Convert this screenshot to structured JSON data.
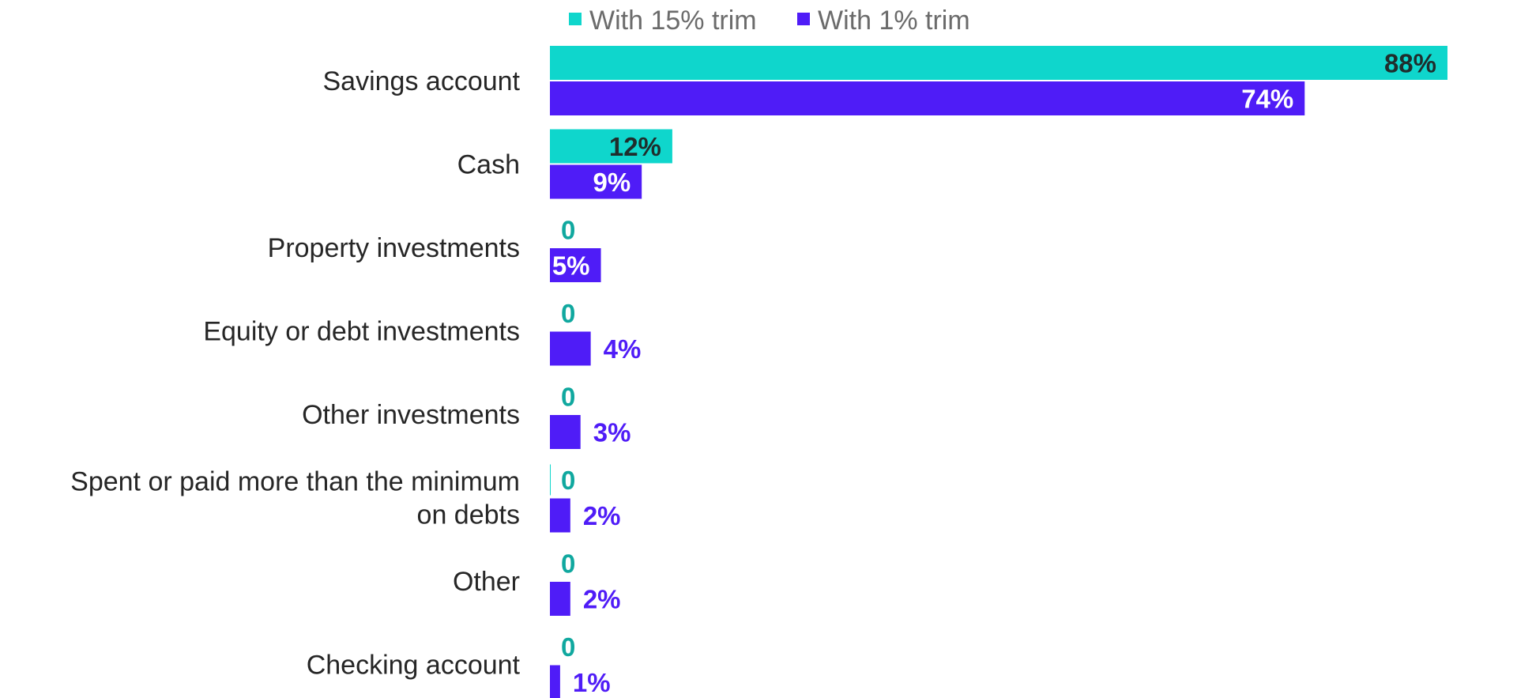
{
  "chart_data": {
    "type": "bar",
    "orientation": "horizontal",
    "categories": [
      [
        "Savings account"
      ],
      [
        "Cash"
      ],
      [
        "Property investments"
      ],
      [
        "Equity or debt investments"
      ],
      [
        "Other investments"
      ],
      [
        "Spent or paid more than the minimum",
        "on debts"
      ],
      [
        "Other"
      ],
      [
        "Checking account"
      ]
    ],
    "series": [
      {
        "name": "With 15% trim",
        "color": "#0fd6cc",
        "label_color_inside": "#1f2d2c",
        "label_color_outside": "#10a89f",
        "values": [
          88,
          12,
          0,
          0,
          0,
          0,
          0,
          0
        ],
        "labels": [
          "88%",
          "12%",
          "0",
          "0",
          "0",
          "0",
          "0",
          "0"
        ]
      },
      {
        "name": "With 1% trim",
        "color": "#4f1cf7",
        "label_color_inside": "#ffffff",
        "label_color_outside": "#4f1cf7",
        "values": [
          74,
          9,
          5,
          4,
          3,
          2,
          2,
          1
        ],
        "labels": [
          "74%",
          "9%",
          "5%",
          "4%",
          "3%",
          "2%",
          "2%",
          "1%"
        ]
      }
    ],
    "xlim": [
      0,
      100
    ],
    "grid": false,
    "legend_position": "top"
  }
}
